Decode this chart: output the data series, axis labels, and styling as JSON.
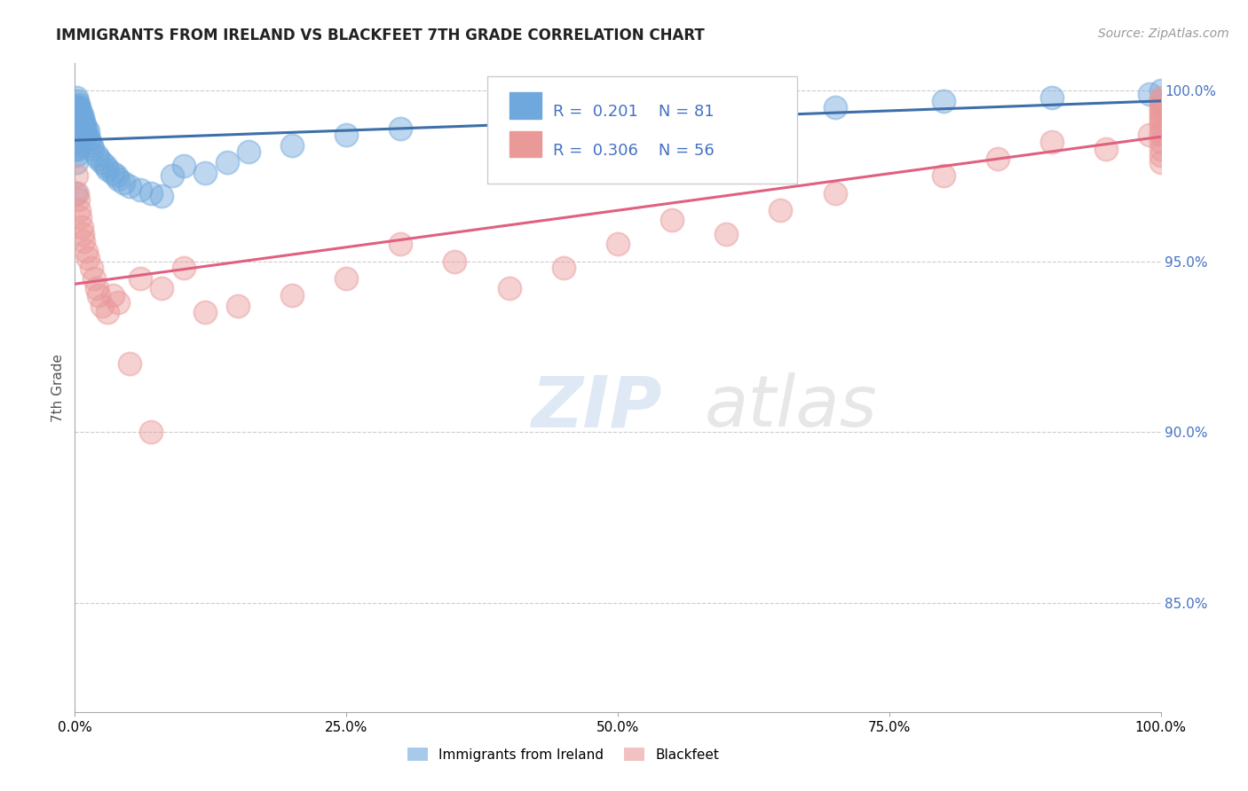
{
  "title": "IMMIGRANTS FROM IRELAND VS BLACKFEET 7TH GRADE CORRELATION CHART",
  "source_text": "Source: ZipAtlas.com",
  "ylabel": "7th Grade",
  "R_blue": 0.201,
  "N_blue": 81,
  "R_pink": 0.306,
  "N_pink": 56,
  "blue_color": "#6fa8dc",
  "pink_color": "#ea9999",
  "blue_line_color": "#3d6fa8",
  "pink_line_color": "#e06080",
  "title_fontsize": 12,
  "source_fontsize": 10,
  "watermark_text": "ZIPatlas",
  "background_color": "#ffffff",
  "ylim_min": 0.818,
  "ylim_max": 1.008,
  "right_yticks": [
    0.85,
    0.9,
    0.95,
    1.0
  ],
  "blue_x": [
    0.0005,
    0.001,
    0.001,
    0.001,
    0.001,
    0.001,
    0.001,
    0.001,
    0.001,
    0.001,
    0.001,
    0.002,
    0.002,
    0.002,
    0.002,
    0.002,
    0.002,
    0.002,
    0.002,
    0.003,
    0.003,
    0.003,
    0.003,
    0.003,
    0.003,
    0.003,
    0.004,
    0.004,
    0.004,
    0.004,
    0.005,
    0.005,
    0.005,
    0.005,
    0.005,
    0.006,
    0.006,
    0.006,
    0.007,
    0.007,
    0.007,
    0.008,
    0.008,
    0.009,
    0.009,
    0.01,
    0.01,
    0.012,
    0.013,
    0.014,
    0.015,
    0.016,
    0.02,
    0.022,
    0.025,
    0.028,
    0.03,
    0.035,
    0.038,
    0.04,
    0.045,
    0.05,
    0.06,
    0.07,
    0.08,
    0.09,
    0.1,
    0.12,
    0.14,
    0.16,
    0.2,
    0.25,
    0.3,
    0.4,
    0.5,
    0.6,
    0.7,
    0.8,
    0.9,
    0.99,
    1.0
  ],
  "blue_y": [
    0.97,
    0.998,
    0.995,
    0.993,
    0.991,
    0.989,
    0.987,
    0.985,
    0.983,
    0.981,
    0.979,
    0.997,
    0.995,
    0.993,
    0.991,
    0.989,
    0.987,
    0.985,
    0.983,
    0.996,
    0.994,
    0.992,
    0.99,
    0.988,
    0.986,
    0.984,
    0.995,
    0.993,
    0.991,
    0.989,
    0.994,
    0.992,
    0.99,
    0.988,
    0.986,
    0.993,
    0.991,
    0.989,
    0.992,
    0.99,
    0.988,
    0.991,
    0.989,
    0.99,
    0.988,
    0.989,
    0.987,
    0.988,
    0.986,
    0.985,
    0.984,
    0.983,
    0.981,
    0.98,
    0.979,
    0.978,
    0.977,
    0.976,
    0.975,
    0.974,
    0.973,
    0.972,
    0.971,
    0.97,
    0.969,
    0.975,
    0.978,
    0.976,
    0.979,
    0.982,
    0.984,
    0.987,
    0.989,
    0.991,
    0.993,
    0.994,
    0.995,
    0.997,
    0.998,
    0.999,
    1.0
  ],
  "pink_x": [
    0.001,
    0.002,
    0.003,
    0.004,
    0.005,
    0.006,
    0.007,
    0.008,
    0.01,
    0.012,
    0.015,
    0.018,
    0.02,
    0.022,
    0.025,
    0.03,
    0.035,
    0.04,
    0.05,
    0.06,
    0.07,
    0.08,
    0.1,
    0.12,
    0.15,
    0.2,
    0.25,
    0.3,
    0.35,
    0.4,
    0.45,
    0.5,
    0.55,
    0.6,
    0.65,
    0.7,
    0.8,
    0.85,
    0.9,
    0.95,
    0.99,
    1.0,
    1.0,
    1.0,
    1.0,
    1.0,
    1.0,
    1.0,
    1.0,
    1.0,
    1.0,
    1.0,
    1.0,
    1.0,
    1.0,
    1.0
  ],
  "pink_y": [
    0.975,
    0.97,
    0.968,
    0.965,
    0.963,
    0.96,
    0.958,
    0.956,
    0.953,
    0.951,
    0.948,
    0.945,
    0.942,
    0.94,
    0.937,
    0.935,
    0.94,
    0.938,
    0.92,
    0.945,
    0.9,
    0.942,
    0.948,
    0.935,
    0.937,
    0.94,
    0.945,
    0.955,
    0.95,
    0.942,
    0.948,
    0.955,
    0.962,
    0.958,
    0.965,
    0.97,
    0.975,
    0.98,
    0.985,
    0.983,
    0.987,
    0.998,
    0.997,
    0.996,
    0.995,
    0.994,
    0.993,
    0.992,
    0.991,
    0.99,
    0.988,
    0.987,
    0.985,
    0.983,
    0.981,
    0.979
  ]
}
